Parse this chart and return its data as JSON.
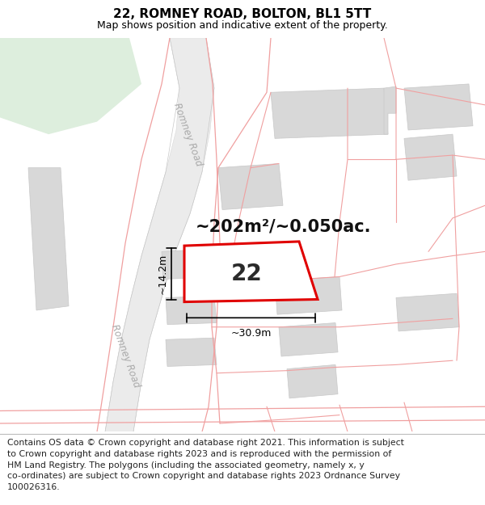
{
  "title": "22, ROMNEY ROAD, BOLTON, BL1 5TT",
  "subtitle": "Map shows position and indicative extent of the property.",
  "area_text": "~202m²/~0.050ac.",
  "width_text": "~30.9m",
  "height_text": "~14.2m",
  "label_22": "22",
  "road_label_top": "Romney Road",
  "road_label_left": "Romney Road",
  "footer_text": "Contains OS data © Crown copyright and database right 2021. This information is subject\nto Crown copyright and database rights 2023 and is reproduced with the permission of\nHM Land Registry. The polygons (including the associated geometry, namely x, y\nco-ordinates) are subject to Crown copyright and database rights 2023 Ordnance Survey\n100026316.",
  "map_bg": "#ffffff",
  "building_fill": "#d8d8d8",
  "building_edge": "#c8c8c8",
  "road_fill": "#e8e8e8",
  "road_edge": "#cccccc",
  "red_strong": "#e00000",
  "red_light": "#f0a0a0",
  "green_fill": "#dceadc",
  "title_fontsize": 11,
  "subtitle_fontsize": 9,
  "footer_fontsize": 7.8,
  "area_fontsize": 15,
  "label22_fontsize": 20
}
